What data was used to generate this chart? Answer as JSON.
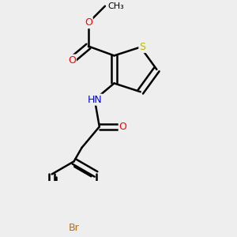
{
  "background_color": "#eeeeee",
  "bond_color": "#000000",
  "atom_colors": {
    "S": "#b8b800",
    "O": "#ff0000",
    "N": "#0000ee",
    "Br": "#cc6600",
    "C": "#000000",
    "H": "#000000"
  },
  "figsize": [
    3.0,
    3.0
  ],
  "dpi": 100
}
